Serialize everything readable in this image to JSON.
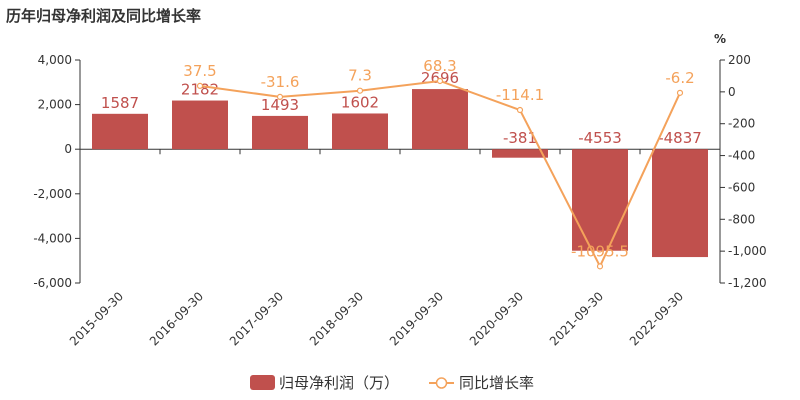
{
  "chart_data": {
    "type": "bar",
    "title": "历年归母净利润及同比增长率",
    "categories": [
      "2015-09-30",
      "2016-09-30",
      "2017-09-30",
      "2018-09-30",
      "2019-09-30",
      "2020-09-30",
      "2021-09-30",
      "2022-09-30"
    ],
    "series": [
      {
        "name": "归母净利润（万）",
        "type": "bar",
        "axis": "left",
        "color": "#c0504d",
        "values": [
          1587,
          2182,
          1493,
          1602,
          2696,
          -381,
          -4553,
          -4837
        ],
        "labels": [
          "1587",
          "2182",
          "1493",
          "1602",
          "2696",
          "-381",
          "-4553",
          "-4837"
        ]
      },
      {
        "name": "同比增长率",
        "type": "line",
        "axis": "right",
        "color": "#f4a25b",
        "values": [
          null,
          37.5,
          -31.6,
          7.3,
          68.3,
          -114.1,
          -1095.5,
          -6.2
        ],
        "labels": [
          "",
          "37.5",
          "-31.6",
          "7.3",
          "68.3",
          "-114.1",
          "-1095.5",
          "-6.2"
        ]
      }
    ],
    "y_left": {
      "min": -6000,
      "max": 4000,
      "ticks": [
        4000,
        2000,
        0,
        -2000,
        -4000,
        -6000
      ],
      "tick_labels": [
        "4,000",
        "2,000",
        "0",
        "-2,000",
        "-4,000",
        "-6,000"
      ]
    },
    "y_right": {
      "min": -1200,
      "max": 200,
      "unit": "%",
      "ticks": [
        200,
        0,
        -200,
        -400,
        -600,
        -800,
        -1000,
        -1200
      ],
      "tick_labels": [
        "200",
        "0",
        "-200",
        "-400",
        "-600",
        "-800",
        "-1,000",
        "-1,200"
      ]
    },
    "legend_position": "bottom-center",
    "grid": false
  }
}
